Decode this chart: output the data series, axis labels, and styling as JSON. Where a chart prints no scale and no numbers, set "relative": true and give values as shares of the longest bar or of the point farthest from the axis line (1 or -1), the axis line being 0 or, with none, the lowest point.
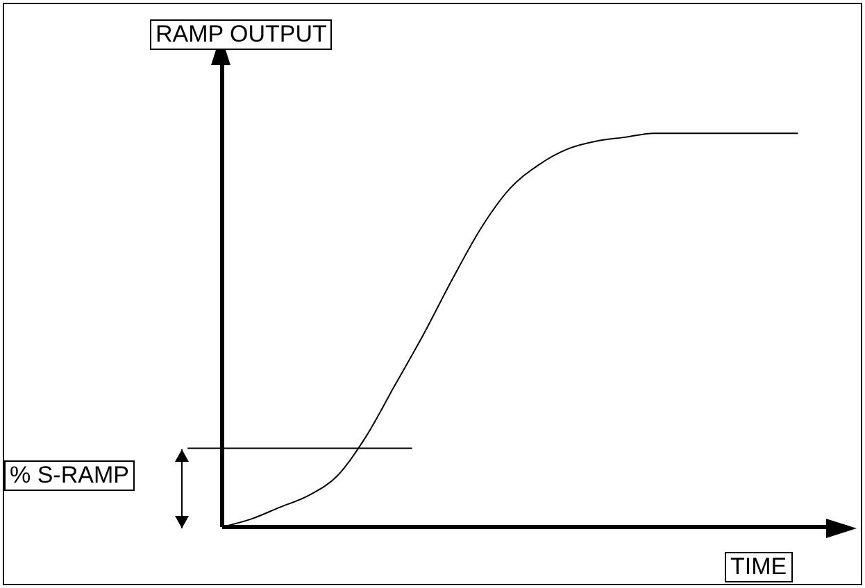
{
  "chart_data": {
    "type": "line",
    "relative": true,
    "xlabel": "TIME",
    "ylabel": "RAMP OUTPUT",
    "categories": [
      null,
      null,
      null,
      null,
      null,
      null,
      null,
      null,
      null,
      null,
      null,
      null,
      null,
      null,
      null,
      null,
      null,
      null,
      null,
      null,
      null
    ],
    "series": [
      {
        "color": "#000000",
        "values": [
          0,
          0.02,
          0.05,
          0.08,
          0.13,
          0.23,
          0.36,
          0.49,
          0.63,
          0.76,
          0.86,
          0.92,
          0.96,
          0.98,
          0.99,
          1,
          1,
          1,
          1,
          1,
          1
        ]
      }
    ],
    "ref_lines": [
      {
        "axis": "y",
        "value": 0.2,
        "label": "% S-RAMP",
        "color": "#000000"
      }
    ],
    "grid": false,
    "legend": false,
    "marker": "none",
    "line_style": "solid"
  }
}
